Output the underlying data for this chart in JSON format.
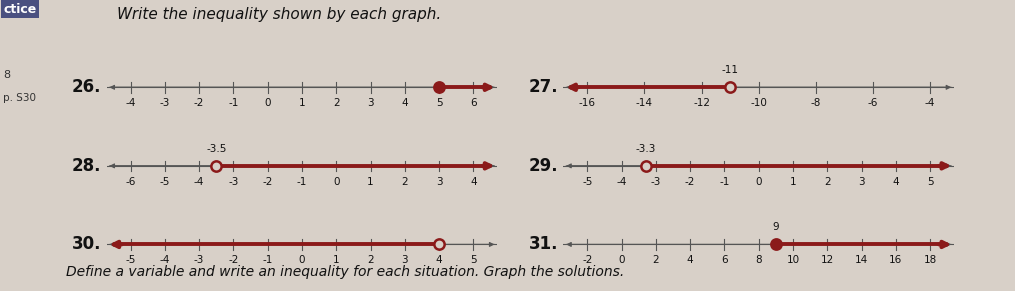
{
  "bg_color": "#d8d0c8",
  "title_text": "Write the inequality shown by each graph.",
  "sidebar_label": "ctice",
  "sidebar_num": "8",
  "sidebar_page": "p. S30",
  "bottom_text": "Define a variable and write an inequality for each situation. Graph the solutions.",
  "graphs": [
    {
      "label": "26.",
      "xmin": -4,
      "xmax": 6,
      "tick_step": 1,
      "point": 5,
      "open": false,
      "arrow_dir": "right",
      "label_above": null,
      "row": 0,
      "col": 0
    },
    {
      "label": "27.",
      "xmin": -16,
      "xmax": -4,
      "tick_step": 2,
      "point": -11,
      "open": true,
      "arrow_dir": "left",
      "label_above": "-11",
      "row": 0,
      "col": 1
    },
    {
      "label": "28.",
      "xmin": -6,
      "xmax": 4,
      "tick_step": 1,
      "point": -3.5,
      "open": true,
      "arrow_dir": "right",
      "label_above": "-3.5",
      "row": 1,
      "col": 0
    },
    {
      "label": "29.",
      "xmin": -5,
      "xmax": 5,
      "tick_step": 1,
      "point": -3.3,
      "open": true,
      "arrow_dir": "right",
      "label_above": "-3.3",
      "row": 1,
      "col": 1
    },
    {
      "label": "30.",
      "xmin": -5,
      "xmax": 5,
      "tick_step": 1,
      "point": 4,
      "open": true,
      "arrow_dir": "left",
      "label_above": null,
      "row": 2,
      "col": 0
    },
    {
      "label": "31.",
      "xmin": -2,
      "xmax": 18,
      "tick_step": 2,
      "point": 9,
      "open": false,
      "arrow_dir": "right",
      "label_above": "9",
      "row": 2,
      "col": 1
    }
  ],
  "line_color": "#8B1A1A",
  "dot_edge_color": "#8B1A1A",
  "dot_fill_closed": "#8B1A1A",
  "dot_fill_open": "#d8d0c8",
  "axis_color": "#555555",
  "tick_color": "#555555",
  "label_fontsize": 12,
  "number_fontsize": 7.5,
  "title_fontsize": 11
}
